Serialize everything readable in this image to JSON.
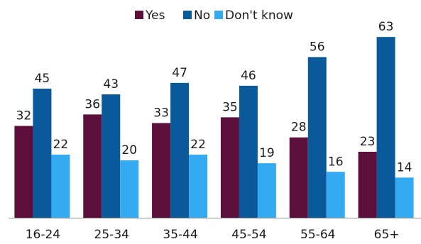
{
  "chart_data": {
    "type": "bar",
    "title": "",
    "xlabel": "",
    "ylabel": "",
    "categories": [
      "16-24",
      "25-34",
      "35-44",
      "45-54",
      "55-64",
      "65+"
    ],
    "series": [
      {
        "name": "Yes",
        "color": "#5b0f3a",
        "values": [
          32,
          36,
          33,
          35,
          28,
          23
        ]
      },
      {
        "name": "No",
        "color": "#0a5a9b",
        "values": [
          45,
          43,
          47,
          46,
          56,
          63
        ]
      },
      {
        "name": "Don't know",
        "color": "#33aaf2",
        "values": [
          22,
          20,
          22,
          19,
          16,
          14
        ]
      }
    ],
    "ylim": [
      0,
      66
    ],
    "grid": false,
    "legend_position": "top-right",
    "show_y_axis": false
  }
}
